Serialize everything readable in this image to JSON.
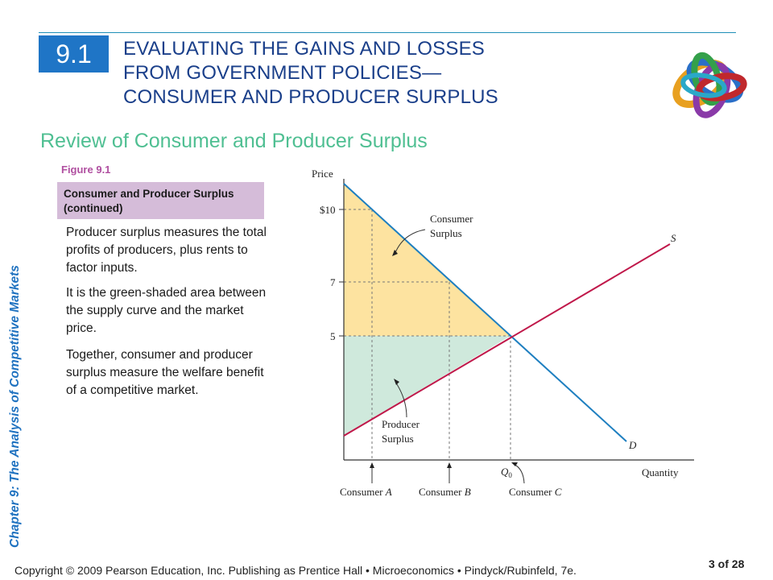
{
  "header": {
    "section_number": "9.1",
    "title_lines": [
      "EVALUATING THE GAINS AND LOSSES",
      "FROM GOVERNMENT POLICIES—",
      "CONSUMER AND PRODUCER SURPLUS"
    ],
    "subtitle": "Review of Consumer and Producer Surplus"
  },
  "sidebar": {
    "chapter": "Chapter 9:  The Analysis of Competitive Markets"
  },
  "figure": {
    "label": "Figure 9.1",
    "caption": "Consumer and Producer Surplus (continued)"
  },
  "paragraphs": [
    "Producer surplus measures the total profits of producers, plus rents to factor inputs.",
    "It is the green-shaded area between the supply curve and the market price.",
    "Together, consumer and producer surplus measure the welfare benefit of a competitive market."
  ],
  "graph": {
    "y_axis_label": "Price",
    "x_axis_label": "Quantity",
    "price_ticks": [
      "$10",
      "7",
      "5"
    ],
    "q_label": "Q",
    "q_sub": "0",
    "supply_label": "S",
    "demand_label": "D",
    "consumer_surplus_label": [
      "Consumer",
      "Surplus"
    ],
    "producer_surplus_label": [
      "Producer",
      "Surplus"
    ],
    "consumers": [
      {
        "name": "Consumer",
        "letter": "A"
      },
      {
        "name": "Consumer",
        "letter": "B"
      },
      {
        "name": "Consumer",
        "letter": "C"
      }
    ],
    "colors": {
      "consumer_surplus": "#fde3a0",
      "producer_surplus": "#cfe9dc",
      "demand": "#1e7fc0",
      "supply": "#c0184a"
    }
  },
  "footer": {
    "copyright": "Copyright © 2009 Pearson Education, Inc. Publishing as Prentice Hall  •  Microeconomics  •  Pindyck/Rubinfeld, 7e.",
    "page": "3 of 28"
  }
}
